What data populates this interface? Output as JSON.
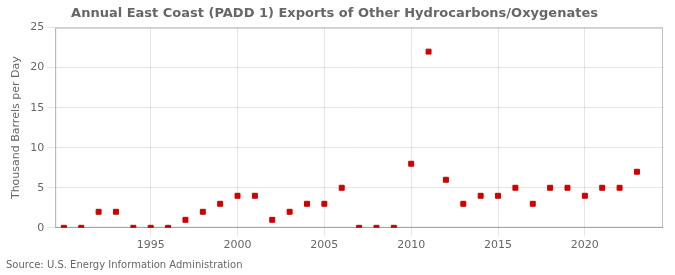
{
  "chart_data": {
    "type": "scatter",
    "title": "Annual East Coast (PADD 1) Exports of Other Hydrocarbons/Oxygenates",
    "ylabel": "Thousand Barrels per Day",
    "annotation": "Source: U.S. Energy Information Administration",
    "x": [
      1990,
      1991,
      1992,
      1993,
      1994,
      1995,
      1996,
      1997,
      1998,
      1999,
      2000,
      2001,
      2002,
      2003,
      2004,
      2005,
      2006,
      2007,
      2008,
      2009,
      2010,
      2011,
      2012,
      2013,
      2014,
      2015,
      2016,
      2017,
      2018,
      2019,
      2020,
      2021,
      2022,
      2023
    ],
    "values": [
      0.0,
      0.0,
      2.0,
      2.0,
      0.0,
      0.0,
      0.0,
      1.0,
      2.0,
      3.0,
      4.0,
      4.0,
      1.0,
      2.0,
      3.0,
      3.0,
      5.0,
      0.0,
      0.0,
      0.0,
      8.0,
      22.0,
      6.0,
      3.0,
      4.0,
      4.0,
      5.0,
      3.0,
      5.0,
      5.0,
      4.0,
      5.0,
      5.0,
      7.0
    ],
    "color": "#cc0000",
    "marker": "square",
    "xlim": [
      1989.5,
      2024.5
    ],
    "xticks": [
      1995,
      2000,
      2005,
      2010,
      2015,
      2020
    ],
    "ylim": [
      0,
      25
    ],
    "yticks": [
      0,
      5,
      10,
      15,
      20,
      25
    ],
    "grid": true
  }
}
